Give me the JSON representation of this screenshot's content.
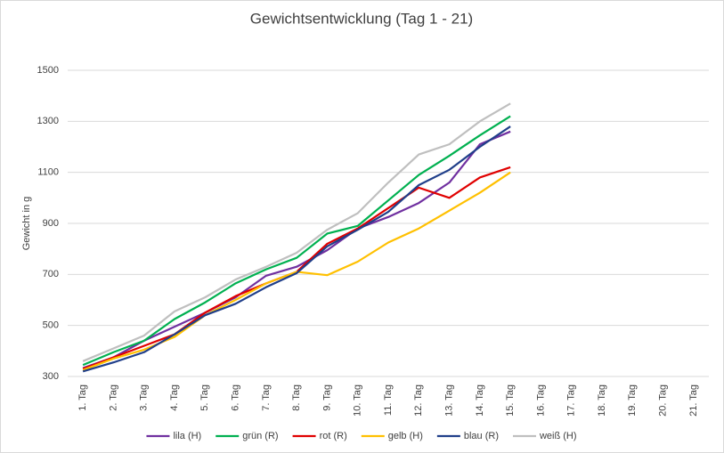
{
  "chart_data": {
    "type": "line",
    "title": "Gewichtsentwicklung (Tag 1 - 21)",
    "y_label": "Gewicht in g",
    "categories": [
      "1. Tag",
      "2. Tag",
      "3. Tag",
      "4. Tag",
      "5. Tag",
      "6. Tag",
      "7. Tag",
      "8. Tag",
      "9. Tag",
      "10. Tag",
      "11. Tag",
      "12. Tag",
      "13. Tag",
      "14. Tag",
      "15. Tag",
      "16. Tag",
      "17. Tag",
      "18. Tag",
      "19. Tag",
      "20. Tag",
      "21. Tag"
    ],
    "series": [
      {
        "name": "lila (H)",
        "color": "#7030a0",
        "values": [
          333,
          375,
          440,
          495,
          550,
          610,
          695,
          730,
          795,
          880,
          925,
          980,
          1060,
          1210,
          1260,
          null,
          null,
          null,
          null,
          null,
          null
        ]
      },
      {
        "name": "grün (R)",
        "color": "#00b050",
        "values": [
          345,
          395,
          440,
          525,
          590,
          665,
          720,
          765,
          860,
          890,
          990,
          1090,
          1165,
          1245,
          1320,
          null,
          null,
          null,
          null,
          null,
          null
        ]
      },
      {
        "name": "rot (R)",
        "color": "#e00000",
        "values": [
          330,
          375,
          420,
          465,
          550,
          615,
          665,
          710,
          820,
          880,
          960,
          1040,
          1000,
          1080,
          1120,
          null,
          null,
          null,
          null,
          null,
          null
        ]
      },
      {
        "name": "gelb (H)",
        "color": "#ffc000",
        "values": [
          325,
          370,
          405,
          455,
          540,
          600,
          665,
          710,
          697,
          750,
          825,
          880,
          950,
          1020,
          1100,
          null,
          null,
          null,
          null,
          null,
          null
        ]
      },
      {
        "name": "blau (R)",
        "color": "#203f8a",
        "values": [
          320,
          355,
          395,
          465,
          540,
          585,
          650,
          705,
          810,
          875,
          945,
          1050,
          1110,
          1200,
          1280,
          null,
          null,
          null,
          null,
          null,
          null
        ]
      },
      {
        "name": "weiß (H)",
        "color": "#bfbfbf",
        "values": [
          360,
          410,
          460,
          555,
          610,
          680,
          730,
          785,
          875,
          940,
          1060,
          1170,
          1210,
          1300,
          1370,
          null,
          null,
          null,
          null,
          null,
          null
        ]
      }
    ],
    "ylim": [
      300,
      1500
    ],
    "yticks": [
      300,
      500,
      700,
      900,
      1100,
      1300,
      1500
    ],
    "grid": true,
    "legend": "bottom"
  }
}
